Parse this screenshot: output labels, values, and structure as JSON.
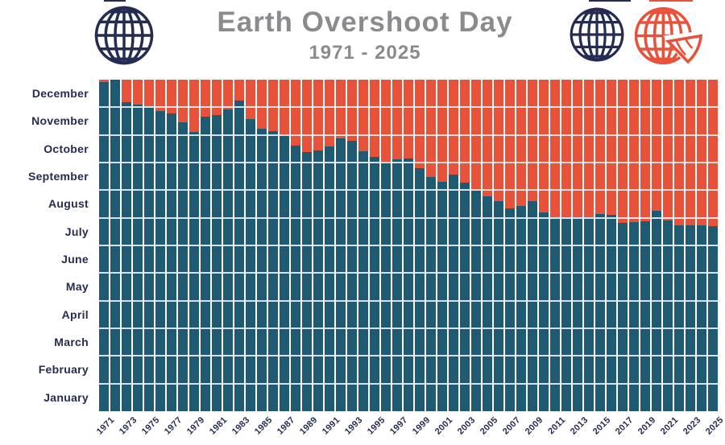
{
  "title": "Earth Overshoot Day",
  "subtitle": "1971 - 2025",
  "colors": {
    "teal": "#1E5A72",
    "orange": "#E8523A",
    "navy": "#252C52",
    "title_gray": "#8A8B8E",
    "gridline": "#E6EEF3",
    "background": "#FFFFFF"
  },
  "icons": [
    {
      "name": "globe-icon-left",
      "style": "navy wireframe globe"
    },
    {
      "name": "globe-icon-right",
      "style": "navy wireframe globe"
    },
    {
      "name": "globe-slice-icon",
      "style": "orange wireframe globe with cut slice (Global Footprint Network mark)"
    }
  ],
  "chart_data": {
    "type": "bar",
    "stacked": true,
    "title": "Earth Overshoot Day",
    "subtitle": "1971 - 2025",
    "x_range": [
      1971,
      2025
    ],
    "y_axis_months": [
      "January",
      "February",
      "March",
      "April",
      "May",
      "June",
      "July",
      "August",
      "September",
      "October",
      "November",
      "December"
    ],
    "grid": "horizontal month boundaries, light lines over bars",
    "legend": "none (color-coded: teal = Jan 1 through Overshoot Day, orange = Overshoot Day through Dec 31)",
    "series": [
      {
        "name": "days-within-budget",
        "color_key": "teal",
        "description": "Part of year before Earth Overshoot Day"
      },
      {
        "name": "ecological-deficit-days",
        "color_key": "orange",
        "description": "Part of year after Earth Overshoot Day"
      }
    ],
    "x_ticks": [
      1971,
      1973,
      1975,
      1977,
      1979,
      1981,
      1983,
      1985,
      1987,
      1989,
      1991,
      1993,
      1995,
      1997,
      1999,
      2001,
      2003,
      2005,
      2007,
      2009,
      2011,
      2013,
      2015,
      2017,
      2019,
      2021,
      2023,
      2025
    ],
    "overshoot_days": [
      {
        "year": 1971,
        "month": 12,
        "day": 28,
        "label": "Dec 28"
      },
      {
        "year": 1972,
        "month": 12,
        "day": 31,
        "label": "Dec 31"
      },
      {
        "year": 1973,
        "month": 12,
        "day": 6,
        "label": "Dec 6"
      },
      {
        "year": 1974,
        "month": 12,
        "day": 3,
        "label": "Dec 3"
      },
      {
        "year": 1975,
        "month": 11,
        "day": 30,
        "label": "Nov 30"
      },
      {
        "year": 1976,
        "month": 11,
        "day": 26,
        "label": "Nov 26"
      },
      {
        "year": 1977,
        "month": 11,
        "day": 23,
        "label": "Nov 23"
      },
      {
        "year": 1978,
        "month": 11,
        "day": 14,
        "label": "Nov 14"
      },
      {
        "year": 1979,
        "month": 11,
        "day": 3,
        "label": "Nov 3"
      },
      {
        "year": 1980,
        "month": 11,
        "day": 20,
        "label": "Nov 20"
      },
      {
        "year": 1981,
        "month": 11,
        "day": 22,
        "label": "Nov 22"
      },
      {
        "year": 1982,
        "month": 11,
        "day": 28,
        "label": "Nov 28"
      },
      {
        "year": 1983,
        "month": 12,
        "day": 8,
        "label": "Dec 8"
      },
      {
        "year": 1984,
        "month": 11,
        "day": 17,
        "label": "Nov 17"
      },
      {
        "year": 1985,
        "month": 11,
        "day": 7,
        "label": "Nov 7"
      },
      {
        "year": 1986,
        "month": 11,
        "day": 4,
        "label": "Nov 4"
      },
      {
        "year": 1987,
        "month": 11,
        "day": 1,
        "label": "Nov 1"
      },
      {
        "year": 1988,
        "month": 10,
        "day": 19,
        "label": "Oct 19"
      },
      {
        "year": 1989,
        "month": 10,
        "day": 12,
        "label": "Oct 12"
      },
      {
        "year": 1990,
        "month": 10,
        "day": 14,
        "label": "Oct 14"
      },
      {
        "year": 1991,
        "month": 10,
        "day": 18,
        "label": "Oct 18"
      },
      {
        "year": 1992,
        "month": 10,
        "day": 27,
        "label": "Oct 27"
      },
      {
        "year": 1993,
        "month": 10,
        "day": 24,
        "label": "Oct 24"
      },
      {
        "year": 1994,
        "month": 10,
        "day": 13,
        "label": "Oct 13"
      },
      {
        "year": 1995,
        "month": 10,
        "day": 6,
        "label": "Oct 6"
      },
      {
        "year": 1996,
        "month": 10,
        "day": 1,
        "label": "Oct 1"
      },
      {
        "year": 1997,
        "month": 10,
        "day": 4,
        "label": "Oct 4"
      },
      {
        "year": 1998,
        "month": 10,
        "day": 5,
        "label": "Oct 5"
      },
      {
        "year": 1999,
        "month": 9,
        "day": 24,
        "label": "Sep 24"
      },
      {
        "year": 2000,
        "month": 9,
        "day": 14,
        "label": "Sep 14"
      },
      {
        "year": 2001,
        "month": 9,
        "day": 9,
        "label": "Sep 9"
      },
      {
        "year": 2002,
        "month": 9,
        "day": 17,
        "label": "Sep 17"
      },
      {
        "year": 2003,
        "month": 9,
        "day": 8,
        "label": "Sep 8"
      },
      {
        "year": 2004,
        "month": 8,
        "day": 30,
        "label": "Aug 30"
      },
      {
        "year": 2005,
        "month": 8,
        "day": 24,
        "label": "Aug 24"
      },
      {
        "year": 2006,
        "month": 8,
        "day": 19,
        "label": "Aug 19"
      },
      {
        "year": 2007,
        "month": 8,
        "day": 11,
        "label": "Aug 11"
      },
      {
        "year": 2008,
        "month": 8,
        "day": 13,
        "label": "Aug 13"
      },
      {
        "year": 2009,
        "month": 8,
        "day": 19,
        "label": "Aug 19"
      },
      {
        "year": 2010,
        "month": 8,
        "day": 6,
        "label": "Aug 6"
      },
      {
        "year": 2011,
        "month": 8,
        "day": 1,
        "label": "Aug 1"
      },
      {
        "year": 2012,
        "month": 7,
        "day": 31,
        "label": "Jul 31"
      },
      {
        "year": 2013,
        "month": 8,
        "day": 1,
        "label": "Aug 1"
      },
      {
        "year": 2014,
        "month": 8,
        "day": 1,
        "label": "Aug 1"
      },
      {
        "year": 2015,
        "month": 8,
        "day": 4,
        "label": "Aug 4"
      },
      {
        "year": 2016,
        "month": 8,
        "day": 3,
        "label": "Aug 3"
      },
      {
        "year": 2017,
        "month": 7,
        "day": 25,
        "label": "Jul 25"
      },
      {
        "year": 2018,
        "month": 7,
        "day": 26,
        "label": "Jul 26"
      },
      {
        "year": 2019,
        "month": 7,
        "day": 27,
        "label": "Jul 27"
      },
      {
        "year": 2020,
        "month": 8,
        "day": 8,
        "label": "Aug 8"
      },
      {
        "year": 2021,
        "month": 7,
        "day": 28,
        "label": "Jul 28"
      },
      {
        "year": 2022,
        "month": 7,
        "day": 23,
        "label": "Jul 23"
      },
      {
        "year": 2023,
        "month": 7,
        "day": 23,
        "label": "Jul 23"
      },
      {
        "year": 2024,
        "month": 7,
        "day": 23,
        "label": "Jul 23"
      },
      {
        "year": 2025,
        "month": 7,
        "day": 22,
        "label": "Jul 22"
      }
    ]
  }
}
